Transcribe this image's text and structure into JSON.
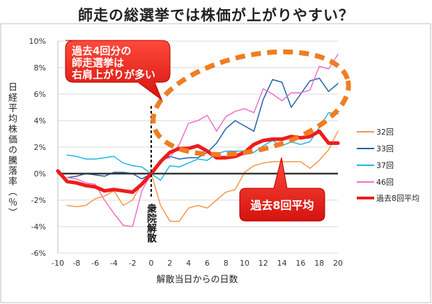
{
  "chart_data": {
    "type": "line",
    "title": "師走の総選挙では株価が上がりやすい？",
    "xlabel": "解散当日からの日数",
    "ylabel": "日経平均株価の騰落率（％）",
    "x": [
      -10,
      -9,
      -8,
      -7,
      -6,
      -5,
      -4,
      -3,
      -2,
      -1,
      0,
      1,
      2,
      3,
      4,
      5,
      6,
      7,
      8,
      9,
      10,
      11,
      12,
      13,
      14,
      15,
      16,
      17,
      18,
      19,
      20
    ],
    "xlim": [
      -10,
      20
    ],
    "ylim": [
      -6,
      10
    ],
    "xticks": [
      -10,
      -8,
      -6,
      -4,
      -2,
      0,
      2,
      4,
      6,
      8,
      10,
      12,
      14,
      16,
      18,
      20
    ],
    "yticks": [
      "-6%",
      "-4%",
      "-2%",
      "0%",
      "2%",
      "4%",
      "6%",
      "8%",
      "10%"
    ],
    "legend_position": "right",
    "series": [
      {
        "name": "32回",
        "color": "#f79646",
        "width": 1.5,
        "values": [
          null,
          -2.4,
          -2.5,
          -2.4,
          -1.9,
          -1.7,
          -1.3,
          -2.4,
          -2.0,
          -0.7,
          0.0,
          -2.4,
          -3.6,
          -3.6,
          -2.6,
          -2.4,
          -2.6,
          -2.0,
          -1.4,
          -1.2,
          0.1,
          0.6,
          0.8,
          0.9,
          0.9,
          0.9,
          0.9,
          0.4,
          1.0,
          1.8,
          3.2
        ]
      },
      {
        "name": "33回",
        "color": "#1f5fa6",
        "width": 1.5,
        "values": [
          null,
          -0.3,
          -0.2,
          0.0,
          -0.1,
          -0.2,
          0.1,
          0.1,
          0.0,
          -0.4,
          0.0,
          1.0,
          1.3,
          1.1,
          1.2,
          1.2,
          1.6,
          2.3,
          3.4,
          4.0,
          3.6,
          3.2,
          5.6,
          7.1,
          6.9,
          5.0,
          6.0,
          7.0,
          7.2,
          6.2,
          6.8
        ]
      },
      {
        "name": "37回",
        "color": "#1eb4e6",
        "width": 1.5,
        "values": [
          null,
          1.4,
          1.3,
          1.1,
          1.1,
          1.2,
          1.3,
          0.8,
          0.6,
          0.5,
          0.0,
          -0.5,
          0.6,
          0.5,
          0.8,
          1.1,
          1.0,
          1.5,
          1.7,
          1.7,
          1.7,
          1.6,
          2.1,
          2.5,
          2.1,
          2.4,
          2.2,
          2.4,
          3.5,
          4.6,
          4.5
        ]
      },
      {
        "name": "46回",
        "color": "#f06ec8",
        "width": 1.5,
        "values": [
          null,
          -0.3,
          -0.4,
          -0.7,
          -0.8,
          -2.0,
          -3.0,
          -3.9,
          -4.0,
          -1.3,
          0.0,
          1.0,
          1.2,
          2.2,
          3.8,
          4.0,
          4.4,
          3.2,
          4.3,
          4.7,
          4.9,
          4.6,
          6.4,
          6.0,
          5.5,
          6.1,
          6.1,
          6.3,
          8.1,
          7.9,
          9.0
        ]
      },
      {
        "name": "過去8回平均",
        "color": "#ee1c1c",
        "width": 5,
        "values": [
          0.2,
          -0.6,
          -0.7,
          -0.9,
          -1.0,
          -1.3,
          -1.2,
          -1.3,
          -1.4,
          -0.8,
          0.0,
          0.9,
          1.6,
          1.9,
          1.9,
          2.1,
          1.7,
          1.2,
          1.2,
          1.3,
          1.6,
          2.2,
          2.5,
          2.6,
          2.6,
          2.8,
          2.7,
          2.8,
          3.2,
          2.3,
          2.3
        ]
      }
    ],
    "annotations": {
      "dissolution_label": "衆院解散",
      "callout_top_lines": [
        "過去4回分の",
        "師走選挙は",
        "右肩上がりが多い"
      ],
      "callout_bottom": "過去8回平均"
    }
  }
}
